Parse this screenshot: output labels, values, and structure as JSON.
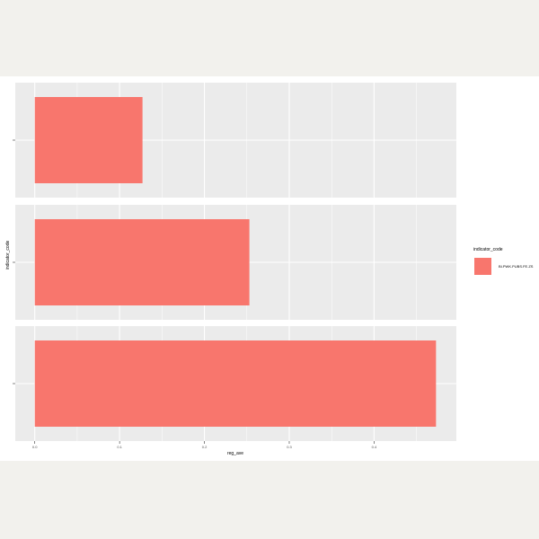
{
  "chart_data": {
    "type": "bar",
    "orientation": "horizontal",
    "facets": 3,
    "categories": [
      "",
      "",
      ""
    ],
    "series": [
      {
        "name": "BI.PWK.PUBS.FE.ZS",
        "values": [
          0.127,
          0.253,
          0.473
        ]
      }
    ],
    "xlabel": "reg_ave",
    "ylabel": "indicator_code",
    "xlim": [
      -0.023,
      0.497
    ],
    "x_ticks": [
      "0.0",
      "0.1",
      "0.2",
      "0.3",
      "0.4"
    ],
    "x_tick_values": [
      0.0,
      0.1,
      0.2,
      0.3,
      0.4
    ],
    "legend": {
      "title": "indicator_code",
      "position": "right"
    },
    "grid": true,
    "colors": {
      "bar": "#f8766d",
      "panel": "#ebebeb",
      "grid": "#ffffff"
    }
  }
}
